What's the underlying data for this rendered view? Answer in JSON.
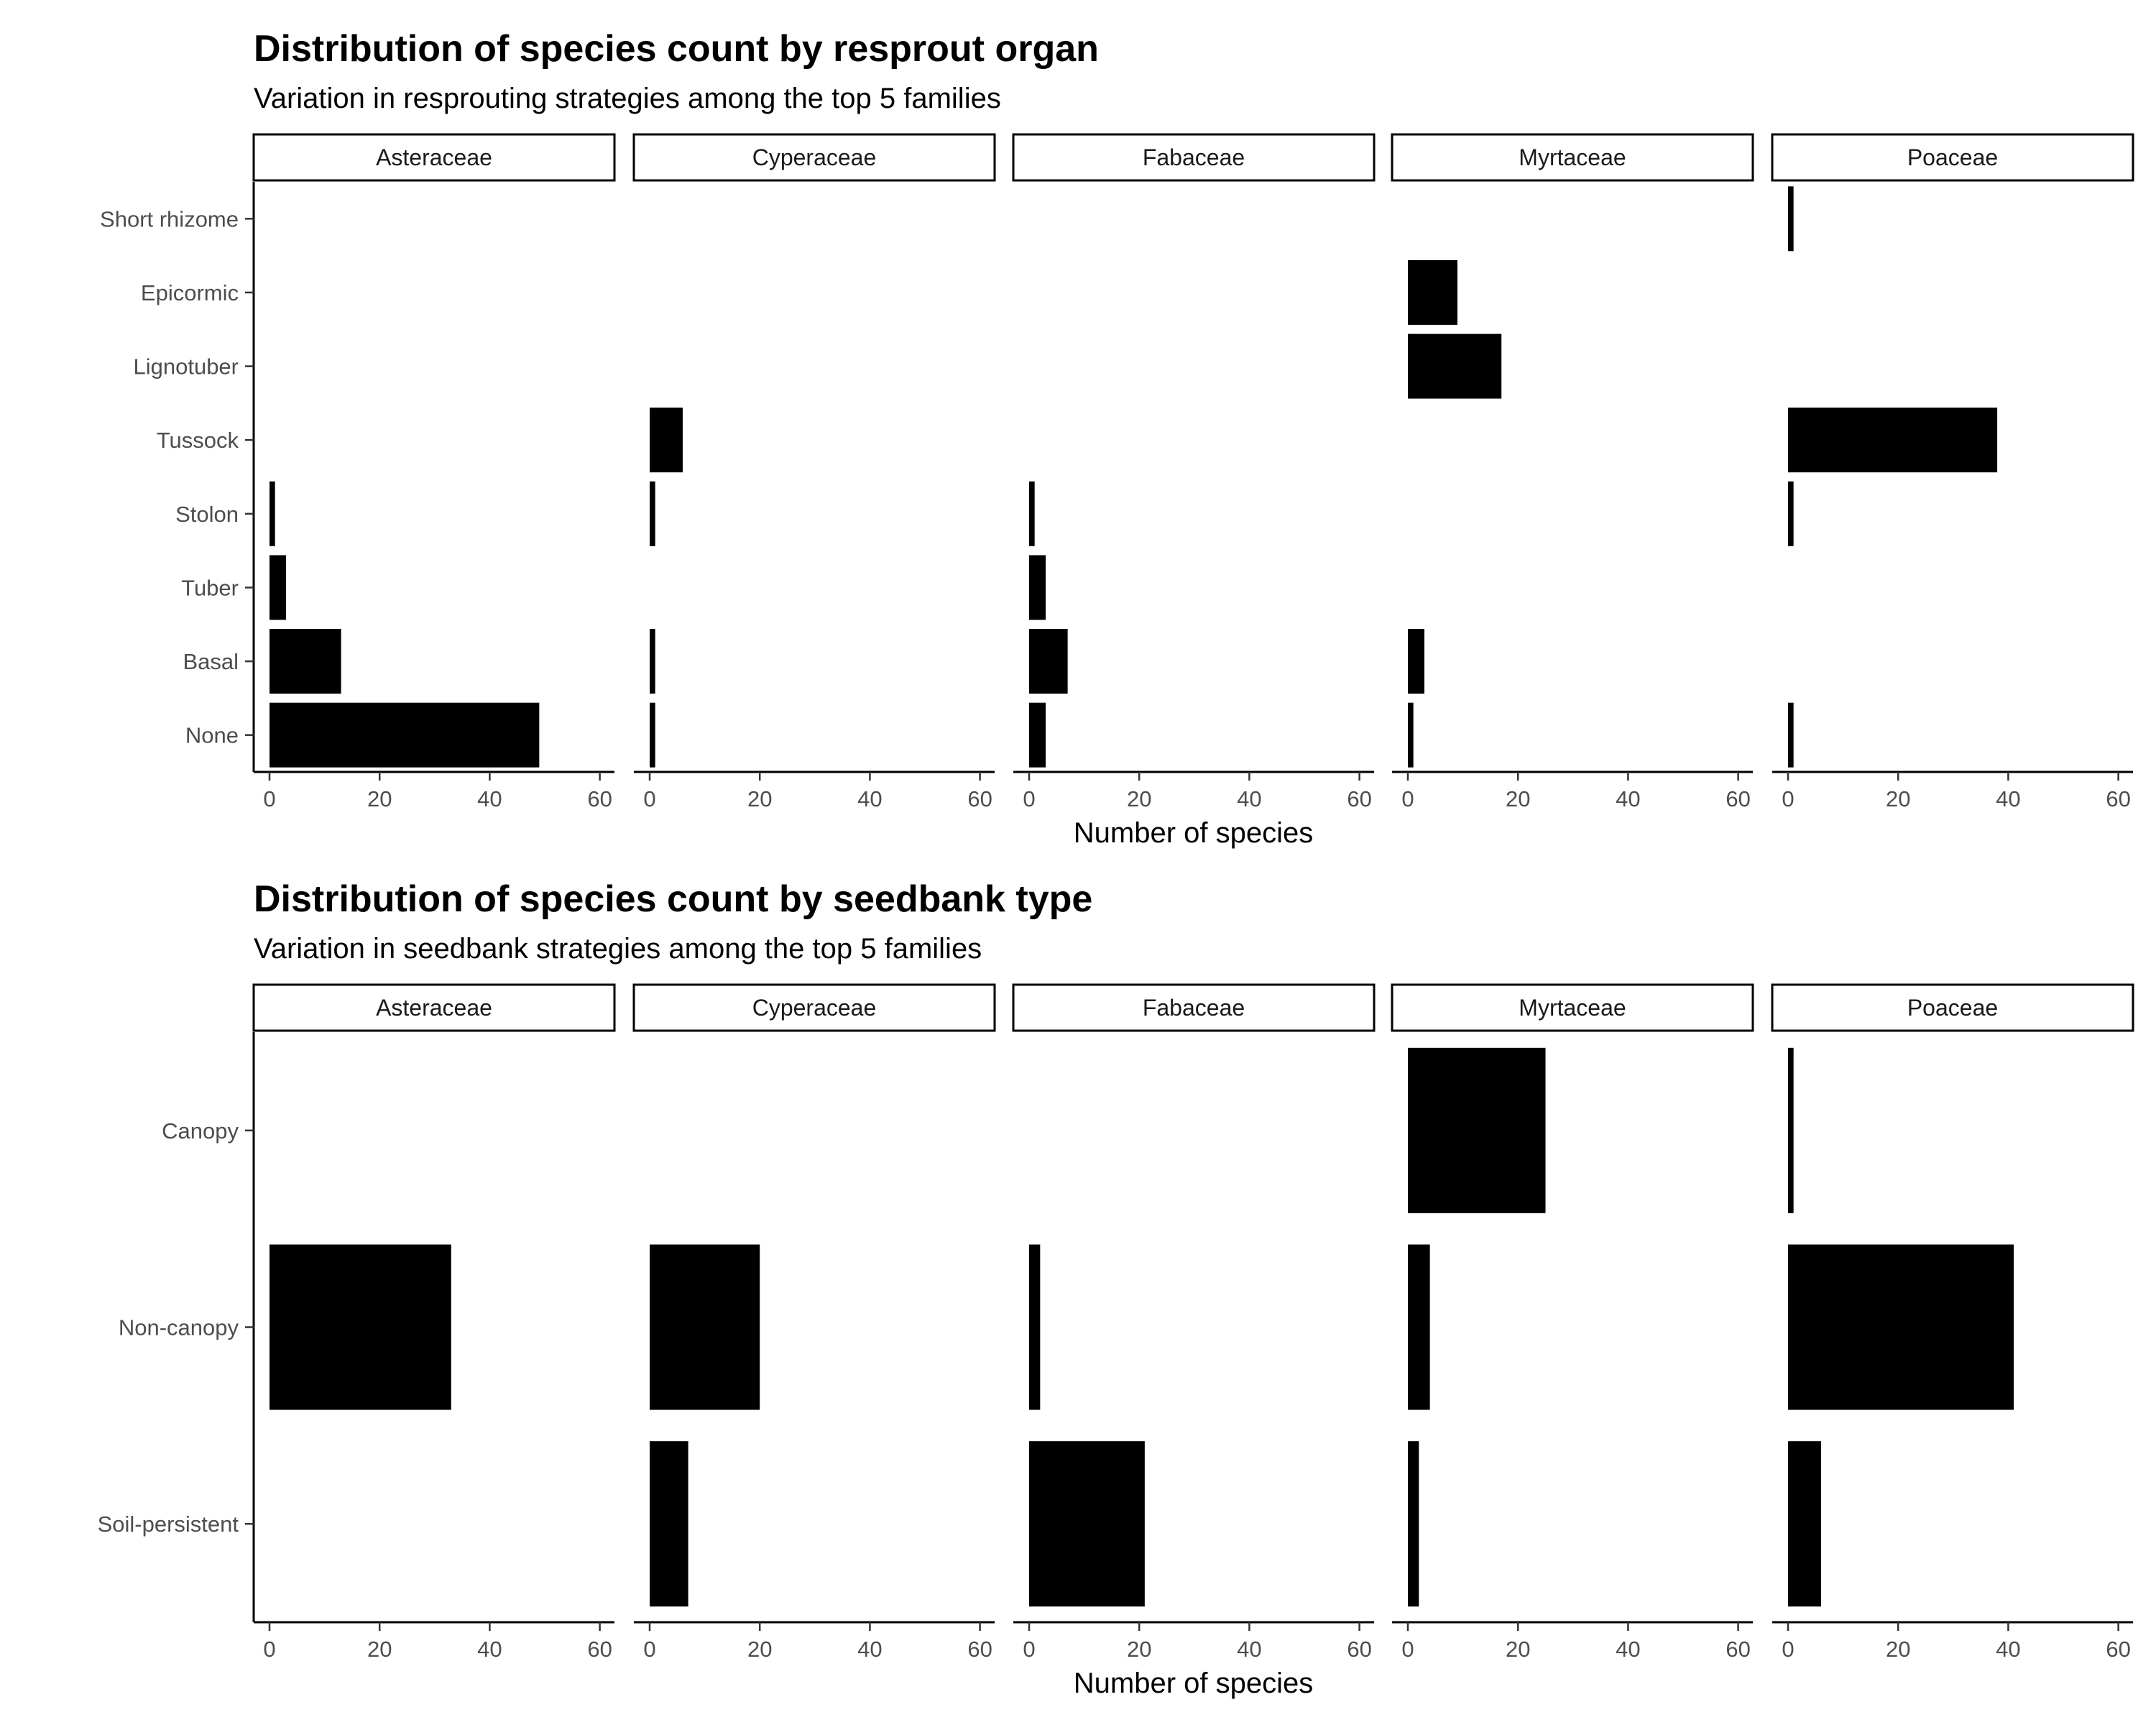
{
  "chart_data": [
    {
      "type": "bar",
      "orientation": "horizontal",
      "faceted": true,
      "title": "Distribution of species count by resprout organ",
      "subtitle": "Variation in resprouting strategies among the top 5 families",
      "xlabel": "Number of species",
      "ylabel": "",
      "xlim": [
        0,
        60
      ],
      "xticks": [
        "0",
        "20",
        "40",
        "60"
      ],
      "grid": false,
      "bar_color": "#000000",
      "categories": [
        "Short rhizome",
        "Epicormic",
        "Lignotuber",
        "Tussock",
        "Stolon",
        "Tuber",
        "Basal",
        "None"
      ],
      "facets": [
        {
          "name": "Asteraceae",
          "values": [
            null,
            null,
            null,
            null,
            1,
            3,
            13,
            49
          ]
        },
        {
          "name": "Cyperaceae",
          "values": [
            null,
            null,
            null,
            6,
            1,
            null,
            1,
            1
          ]
        },
        {
          "name": "Fabaceae",
          "values": [
            null,
            null,
            null,
            null,
            1,
            3,
            7,
            3
          ]
        },
        {
          "name": "Myrtaceae",
          "values": [
            null,
            9,
            17,
            null,
            null,
            null,
            3,
            1
          ]
        },
        {
          "name": "Poaceae",
          "values": [
            1,
            null,
            null,
            38,
            1,
            null,
            null,
            1
          ]
        }
      ]
    },
    {
      "type": "bar",
      "orientation": "horizontal",
      "faceted": true,
      "title": "Distribution of species count by seedbank type",
      "subtitle": "Variation in seedbank strategies among the top 5 families",
      "xlabel": "Number of species",
      "ylabel": "",
      "xlim": [
        0,
        60
      ],
      "xticks": [
        "0",
        "20",
        "40",
        "60"
      ],
      "grid": false,
      "bar_color": "#000000",
      "categories": [
        "Canopy",
        "Non-canopy",
        "Soil-persistent"
      ],
      "facets": [
        {
          "name": "Asteraceae",
          "values": [
            null,
            33,
            null
          ]
        },
        {
          "name": "Cyperaceae",
          "values": [
            null,
            20,
            7
          ]
        },
        {
          "name": "Fabaceae",
          "values": [
            null,
            2,
            21
          ]
        },
        {
          "name": "Myrtaceae",
          "values": [
            25,
            4,
            2
          ]
        },
        {
          "name": "Poaceae",
          "values": [
            1,
            41,
            6
          ]
        }
      ]
    }
  ]
}
